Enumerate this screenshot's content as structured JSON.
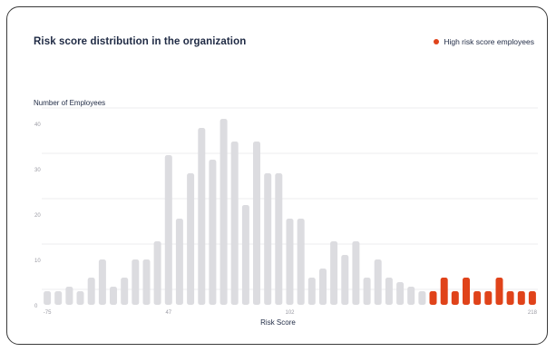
{
  "title": "Risk score distribution in the organization",
  "legend": {
    "label": "High risk score employees",
    "color": "#e0431a"
  },
  "colors": {
    "bar_normal": "#dcdce0",
    "bar_high": "#e0431a",
    "grid": "#ececef",
    "tick_text": "#9a9aa3"
  },
  "chart_data": {
    "type": "bar",
    "title": "Risk score distribution in the organization",
    "xlabel": "Risk Score",
    "ylabel": "Number of Employees",
    "ylim": [
      0,
      40
    ],
    "y_ticks": [
      0,
      10,
      20,
      30,
      40
    ],
    "x_tick_labels": [
      {
        "label": "-75",
        "index": 0
      },
      {
        "label": "47",
        "index": 11
      },
      {
        "label": "102",
        "index": 22
      },
      {
        "label": "218",
        "index": 44
      }
    ],
    "grid": true,
    "legend_position": "top-right",
    "series": [
      {
        "name": "High risk score employees",
        "indices": [
          35,
          36,
          37,
          38,
          39,
          40,
          41,
          42,
          43,
          44
        ]
      }
    ],
    "values": [
      3,
      3,
      4,
      3,
      6,
      10,
      4,
      6,
      10,
      10,
      14,
      33,
      19,
      29,
      39,
      32,
      41,
      36,
      22,
      36,
      29,
      29,
      19,
      19,
      6,
      8,
      14,
      11,
      14,
      6,
      10,
      6,
      5,
      4,
      3,
      3,
      6,
      3,
      6,
      3,
      3,
      6,
      3,
      3,
      3
    ]
  }
}
